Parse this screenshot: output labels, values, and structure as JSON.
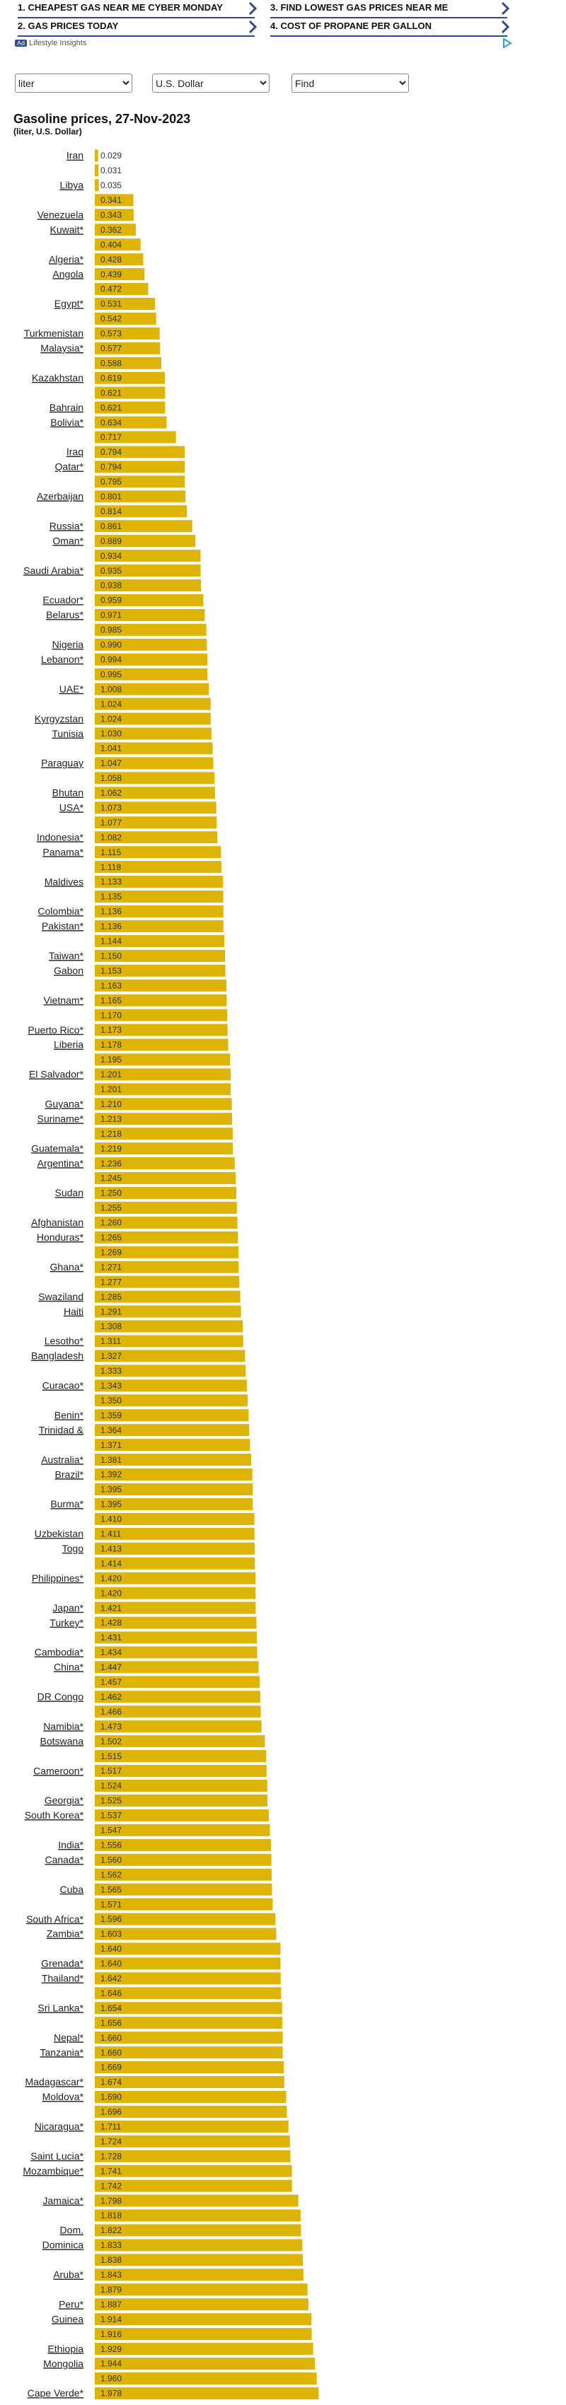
{
  "nav": [
    "1. CHEAPEST GAS NEAR ME CYBER MONDAY",
    "3. FIND LOWEST GAS PRICES NEAR ME",
    "2. GAS PRICES TODAY",
    "4. COST OF PROPANE PER GALLON"
  ],
  "ad": {
    "badge": "Ad",
    "sponsor": "Lifestyle Insights"
  },
  "selects": [
    "liter",
    "U.S. Dollar",
    "Find"
  ],
  "chart_data": {
    "type": "bar",
    "orientation": "horizontal",
    "title": "Gasoline prices, 27-Nov-2023",
    "subtitle": "(liter, U.S. Dollar)",
    "color": "#deb406",
    "categories": [
      "Iran",
      null,
      "Libya",
      null,
      "Venezuela",
      "Kuwait*",
      null,
      "Algeria*",
      "Angola",
      null,
      "Egypt*",
      null,
      "Turkmenistan",
      "Malaysia*",
      null,
      "Kazakhstan",
      null,
      "Bahrain",
      "Bolivia*",
      null,
      "Iraq",
      "Qatar*",
      null,
      "Azerbaijan",
      null,
      "Russia*",
      "Oman*",
      null,
      "Saudi Arabia*",
      null,
      "Ecuador*",
      "Belarus*",
      null,
      "Nigeria",
      "Lebanon*",
      null,
      "UAE*",
      null,
      "Kyrgyzstan",
      "Tunisia",
      null,
      "Paraguay",
      null,
      "Bhutan",
      "USA*",
      null,
      "Indonesia*",
      "Panama*",
      null,
      "Maldives",
      null,
      "Colombia*",
      "Pakistan*",
      null,
      "Taiwan*",
      "Gabon",
      null,
      "Vietnam*",
      null,
      "Puerto Rico*",
      "Liberia",
      null,
      "El Salvador*",
      null,
      "Guyana*",
      "Suriname*",
      null,
      "Guatemala*",
      "Argentina*",
      null,
      "Sudan",
      null,
      "Afghanistan",
      "Honduras*",
      null,
      "Ghana*",
      null,
      "Swaziland",
      "Haiti",
      null,
      "Lesotho*",
      "Bangladesh",
      null,
      "Curacao*",
      null,
      "Benin*",
      "Trinidad &",
      null,
      "Australia*",
      "Brazil*",
      null,
      "Burma*",
      null,
      "Uzbekistan",
      "Togo",
      null,
      "Philippines*",
      null,
      "Japan*",
      "Turkey*",
      null,
      "Cambodia*",
      "China*",
      null,
      "DR Congo",
      null,
      "Namibia*",
      "Botswana",
      null,
      "Cameroon*",
      null,
      "Georgia*",
      "South Korea*",
      null,
      "India*",
      "Canada*",
      null,
      "Cuba",
      null,
      "South Africa*",
      "Zambia*",
      null,
      "Grenada*",
      "Thailand*",
      null,
      "Sri Lanka*",
      null,
      "Nepal*",
      "Tanzania*",
      null,
      "Madagascar*",
      "Moldova*",
      null,
      "Nicaragua*",
      null,
      "Saint Lucia*",
      "Mozambique*",
      null,
      "Jamaica*",
      null,
      "Dom.",
      "Dominica",
      null,
      "Aruba*",
      null,
      "Peru*",
      "Guinea",
      null,
      "Ethiopia",
      "Mongolia",
      null,
      "Cape Verde*"
    ],
    "values": [
      0.029,
      0.031,
      0.035,
      0.341,
      0.343,
      0.362,
      0.404,
      0.428,
      0.439,
      0.472,
      0.531,
      0.542,
      0.573,
      0.577,
      0.588,
      0.619,
      0.621,
      0.621,
      0.634,
      0.717,
      0.794,
      0.794,
      0.795,
      0.801,
      0.814,
      0.861,
      0.889,
      0.934,
      0.935,
      0.938,
      0.959,
      0.971,
      0.985,
      0.99,
      0.994,
      0.995,
      1.008,
      1.024,
      1.024,
      1.03,
      1.041,
      1.047,
      1.058,
      1.062,
      1.073,
      1.077,
      1.082,
      1.115,
      1.118,
      1.133,
      1.135,
      1.136,
      1.136,
      1.144,
      1.15,
      1.153,
      1.163,
      1.165,
      1.17,
      1.173,
      1.178,
      1.195,
      1.201,
      1.201,
      1.21,
      1.213,
      1.218,
      1.219,
      1.236,
      1.245,
      1.25,
      1.255,
      1.26,
      1.265,
      1.269,
      1.271,
      1.277,
      1.285,
      1.291,
      1.308,
      1.311,
      1.327,
      1.333,
      1.343,
      1.35,
      1.359,
      1.364,
      1.371,
      1.381,
      1.392,
      1.395,
      1.395,
      1.41,
      1.411,
      1.413,
      1.414,
      1.42,
      1.42,
      1.421,
      1.428,
      1.431,
      1.434,
      1.447,
      1.457,
      1.462,
      1.466,
      1.473,
      1.502,
      1.515,
      1.517,
      1.524,
      1.525,
      1.537,
      1.547,
      1.556,
      1.56,
      1.562,
      1.565,
      1.571,
      1.596,
      1.603,
      1.64,
      1.64,
      1.642,
      1.646,
      1.654,
      1.656,
      1.66,
      1.66,
      1.669,
      1.674,
      1.69,
      1.696,
      1.711,
      1.724,
      1.728,
      1.741,
      1.742,
      1.798,
      1.818,
      1.822,
      1.833,
      1.838,
      1.843,
      1.879,
      1.887,
      1.914,
      1.916,
      1.929,
      1.944,
      1.96,
      1.978
    ],
    "value_labels": [
      "0.029",
      "0.031",
      "0.035",
      "0.341",
      "0.343",
      "0.362",
      "0.404",
      "0.428",
      "0.439",
      "0.472",
      "0.531",
      "0.542",
      "0.573",
      "0.577",
      "0.588",
      "0.619",
      "0.621",
      "0.621",
      "0.634",
      "0.717",
      "0.794",
      "0.794",
      "0.795",
      "0.801",
      "0.814",
      "0.861",
      "0.889",
      "0.934",
      "0.935",
      "0.938",
      "0.959",
      "0.971",
      "0.985",
      "0.990",
      "0.994",
      "0.995",
      "1.008",
      "1.024",
      "1.024",
      "1.030",
      "1.041",
      "1.047",
      "1.058",
      "1.062",
      "1.073",
      "1.077",
      "1.082",
      "1.115",
      "1.118",
      "1.133",
      "1.135",
      "1.136",
      "1.136",
      "1.144",
      "1.150",
      "1.153",
      "1.163",
      "1.165",
      "1.170",
      "1.173",
      "1.178",
      "1.195",
      "1.201",
      "1.201",
      "1.210",
      "1.213",
      "1.218",
      "1.219",
      "1.236",
      "1.245",
      "1.250",
      "1.255",
      "1.260",
      "1.265",
      "1.269",
      "1.271",
      "1.277",
      "1.285",
      "1.291",
      "1.308",
      "1.311",
      "1.327",
      "1.333",
      "1.343",
      "1.350",
      "1.359",
      "1.364",
      "1.371",
      "1.381",
      "1.392",
      "1.395",
      "1.395",
      "1.410",
      "1.411",
      "1.413",
      "1.414",
      "1.420",
      "1.420",
      "1.421",
      "1.428",
      "1.431",
      "1.434",
      "1.447",
      "1.457",
      "1.462",
      "1.466",
      "1.473",
      "1.502",
      "1.515",
      "1.517",
      "1.524",
      "1.525",
      "1.537",
      "1.547",
      "1.556",
      "1.560",
      "1.562",
      "1.565",
      "1.571",
      "1.596",
      "1.603",
      "1.640",
      "1.640",
      "1.642",
      "1.646",
      "1.654",
      "1.656",
      "1.660",
      "1.660",
      "1.669",
      "1.674",
      "1.690",
      "1.696",
      "1.711",
      "1.724",
      "1.728",
      "1.741",
      "1.742",
      "1.798",
      "1.818",
      "1.822",
      "1.833",
      "1.838",
      "1.843",
      "1.879",
      "1.887",
      "1.914",
      "1.916",
      "1.929",
      "1.944",
      "1.960",
      "1.978"
    ]
  }
}
